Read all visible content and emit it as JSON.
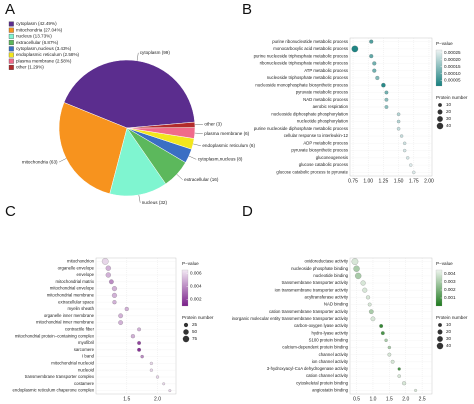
{
  "chart_data": [
    {
      "type": "pie",
      "panel_label": "A",
      "categories": [
        "cytoplasm",
        "mitochondria",
        "nucleus",
        "extracellular",
        "cytoplasm,nucleus",
        "endoplasmic reticulum",
        "plasma membrane",
        "other"
      ],
      "values": [
        99,
        63,
        32,
        16,
        8,
        6,
        6,
        3
      ],
      "slice_labels": [
        "cytoplasm (99)",
        "mitochondria (63)",
        "nucleus (32)",
        "extracellular (16)",
        "cytoplasm,nucleus (8)",
        "endoplasmic reticulum (6)",
        "plasma membrane (6)",
        "other (3)"
      ],
      "legend_labels": [
        "cytoplasm (42.49%)",
        "mitochondria (27.04%)",
        "nucleus (13.73%)",
        "extracellular (6.87%)",
        "cytoplasm,nucleus (3.43%)",
        "endoplasmic reticulum (2.58%)",
        "plasma membrane (2.58%)",
        "other (1.29%)"
      ],
      "colors": [
        "#5b2d8e",
        "#f7931e",
        "#7ff5d0",
        "#5cb85c",
        "#3a6fc4",
        "#f2e61d",
        "#f06a8a",
        "#b22a2a"
      ]
    },
    {
      "type": "dotplot",
      "panel_label": "B",
      "categories": [
        "purine ribonucleotide metabolic process",
        "monocarboxylic acid metabolic process",
        "purine nucleoside triphosphate metabolic process",
        "ribonucleoside triphosphate metabolic process",
        "ATP metabolic process",
        "nucleoside triphosphate metabolic process",
        "nucleoside monophosphate biosynthetic process",
        "pyruvate metabolic process",
        "NAD metabolic process",
        "aerobic respiration",
        "nucleoside diphosphate phosphorylation",
        "nucleotide phosphorylation",
        "purine nucleoside diphosphate metabolic process",
        "cellular response to interleukin-12",
        "ADP metabolic process",
        "pyruvate biosynthetic process",
        "gluconeogenesis",
        "glucose catabolic process",
        "glucose catabolic process to pyruvate"
      ],
      "x": [
        1.05,
        0.78,
        1.05,
        1.1,
        1.1,
        1.15,
        1.25,
        1.3,
        1.3,
        1.3,
        1.5,
        1.5,
        1.5,
        1.55,
        1.6,
        1.6,
        1.65,
        1.7,
        1.75
      ],
      "pvalues": [
        8e-05,
        2e-05,
        0.0001,
        0.00012,
        0.00012,
        0.00014,
        3e-05,
        0.00012,
        0.00015,
        0.00015,
        0.0002,
        0.0002,
        0.00022,
        0.00022,
        0.00023,
        0.00024,
        0.00024,
        0.00025,
        0.00025
      ],
      "counts": [
        10,
        40,
        10,
        10,
        10,
        10,
        12,
        8,
        8,
        8,
        6,
        6,
        6,
        5,
        5,
        5,
        5,
        5,
        5
      ],
      "xlim": [
        0.7,
        2.05
      ],
      "xticks": [
        0.75,
        {
          "value": 1,
          "label": "1.00"
        },
        1.25,
        {
          "value": 1.5,
          "label": "1.50"
        },
        1.75,
        {
          "value": 2,
          "label": "2.00"
        }
      ],
      "color_legend_title": "P−value",
      "plim": [
        1e-05,
        0.00027
      ],
      "pticks": [
        0.00025,
        {
          "value": 0.0002,
          "label": "0.00020"
        },
        0.00015,
        {
          "value": 0.0001,
          "label": "0.00010"
        },
        5e-05
      ],
      "low_color": "#17807f",
      "high_color": "#eef3f3",
      "size_legend_title": "Protein number",
      "size_legend": [
        10,
        20,
        30,
        40
      ]
    },
    {
      "type": "dotplot",
      "panel_label": "C",
      "categories": [
        "mitochondrion",
        "organelle envelope",
        "envelope",
        "mitochondrial matrix",
        "mitochondrial envelope",
        "mitochondrial membrane",
        "extracellular space",
        "myelin sheath",
        "organelle inner membrane",
        "mitochondrial inner membrane",
        "contractile fiber",
        "mitochondrial protein−containing complex",
        "myofibril",
        "sarcomere",
        "I band",
        "mitochondrial nucleoid",
        "nucleoid",
        "transmembrane transporter complex",
        "costamere",
        "endoplasmic reticulum chaperone complex"
      ],
      "x": [
        1.15,
        1.2,
        1.2,
        1.25,
        1.3,
        1.3,
        1.3,
        1.5,
        1.4,
        1.4,
        1.7,
        1.6,
        1.7,
        1.7,
        1.75,
        1.9,
        1.9,
        2.0,
        2.1,
        2.2
      ],
      "pvalues": [
        0.006,
        0.005,
        0.005,
        0.004,
        0.005,
        0.005,
        0.005,
        0.005,
        0.005,
        0.005,
        0.005,
        0.005,
        0.002,
        0.0015,
        0.004,
        0.006,
        0.006,
        0.006,
        0.006,
        0.006
      ],
      "counts": [
        75,
        40,
        40,
        30,
        35,
        35,
        20,
        20,
        30,
        30,
        15,
        20,
        15,
        15,
        10,
        8,
        8,
        8,
        5,
        5
      ],
      "xlim": [
        1.0,
        2.3
      ],
      "xticks": [
        1.5,
        {
          "value": 2,
          "label": "2.0"
        }
      ],
      "color_legend_title": "P−value",
      "plim": [
        0.001,
        0.0065
      ],
      "pticks": [
        0.006,
        0.004,
        0.002
      ],
      "low_color": "#7a1f8a",
      "high_color": "#f2e8f3",
      "size_legend_title": "Protein number",
      "size_legend": [
        25,
        50,
        75
      ]
    },
    {
      "type": "dotplot",
      "panel_label": "D",
      "categories": [
        "oxidoreductase activity",
        "nucleoside phosphate binding",
        "nucleotide binding",
        "transmembrane transporter activity",
        "ion transmembrane transporter activity",
        "acyltransferase activity",
        "NAD binding",
        "cation transmembrane transporter activity",
        "inorganic molecular entity transmembrane transporter activity",
        "carbon-oxygen lyase activity",
        "hydro-lyase activity",
        "S100 protein binding",
        "calcium-dependent protein binding",
        "channel activity",
        "ion channel activity",
        "3-hydroxyacyl-CoA dehydrogenase activity",
        "cation channel activity",
        "cytoskeletal protein binding",
        "angiostatin binding"
      ],
      "x": [
        0.45,
        0.5,
        0.55,
        0.7,
        0.75,
        0.85,
        0.9,
        0.95,
        1.0,
        1.25,
        1.3,
        1.4,
        1.5,
        1.5,
        1.6,
        1.8,
        1.8,
        1.95,
        2.3
      ],
      "pvalues": [
        0.004,
        0.003,
        0.003,
        0.004,
        0.004,
        0.004,
        0.004,
        0.003,
        0.004,
        0.0005,
        0.001,
        0.003,
        0.003,
        0.004,
        0.004,
        0.001,
        0.004,
        0.004,
        0.004
      ],
      "counts": [
        40,
        35,
        35,
        20,
        18,
        10,
        8,
        15,
        15,
        8,
        8,
        5,
        5,
        8,
        8,
        4,
        6,
        10,
        3
      ],
      "xlim": [
        0.3,
        2.8
      ],
      "xticks": [
        0.5,
        {
          "value": 1,
          "label": "1.0"
        },
        1.5,
        {
          "value": 2,
          "label": "2.0"
        },
        2.5
      ],
      "color_legend_title": "P−value",
      "plim": [
        0,
        0.0045
      ],
      "pticks": [
        0.004,
        0.003,
        0.002,
        0.001
      ],
      "low_color": "#1e7a1e",
      "high_color": "#eef4ee",
      "size_legend_title": "Protein number",
      "size_legend": [
        10,
        20,
        30,
        40
      ]
    }
  ]
}
